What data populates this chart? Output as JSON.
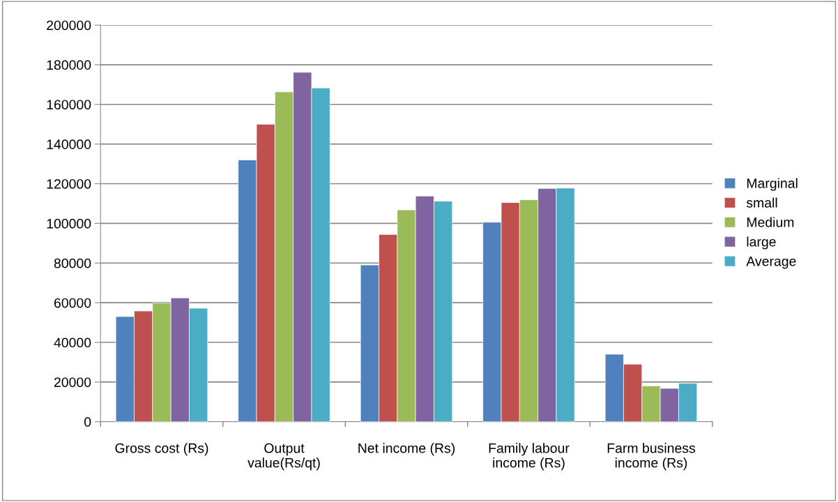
{
  "chart_data": {
    "type": "bar",
    "categories": [
      "Gross cost (Rs)",
      "Output value(Rs/qt)",
      "Net income (Rs)",
      "Family labour income (Rs)",
      "Farm business income (Rs)"
    ],
    "series": [
      {
        "name": "Marginal",
        "color": "#4f81bd",
        "values": [
          53000,
          132000,
          79000,
          100600,
          34000
        ]
      },
      {
        "name": "small",
        "color": "#c0504d",
        "values": [
          55800,
          150000,
          94400,
          110500,
          29000
        ]
      },
      {
        "name": "Medium",
        "color": "#9bbb59",
        "values": [
          59800,
          166300,
          106800,
          111900,
          18000
        ]
      },
      {
        "name": "large",
        "color": "#8064a2",
        "values": [
          62400,
          176200,
          113800,
          117600,
          16800
        ]
      },
      {
        "name": "Average",
        "color": "#4bacc6",
        "values": [
          57200,
          168300,
          111200,
          117800,
          19400
        ]
      }
    ],
    "ylim": [
      0,
      200000
    ],
    "yticks": [
      0,
      20000,
      40000,
      60000,
      80000,
      100000,
      120000,
      140000,
      160000,
      180000,
      200000
    ],
    "grid": "y",
    "legend": "right"
  }
}
